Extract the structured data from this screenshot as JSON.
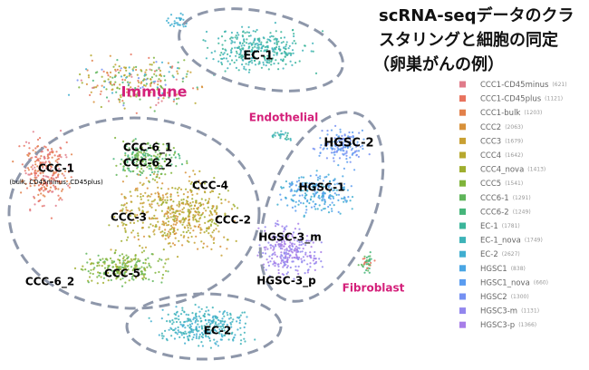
{
  "title_lines": [
    "scRNA-seqデータのクラ",
    "スタリングと細胞の同定",
    "（卵巣がんの例）"
  ],
  "legend": [
    {
      "name": "CCC1-CD45minus",
      "count": "(621)",
      "color": "#e07b8a"
    },
    {
      "name": "CCC1-CD45plus",
      "count": "(1121)",
      "color": "#e8735e"
    },
    {
      "name": "CCC1-bulk",
      "count": "(1203)",
      "color": "#e2804a"
    },
    {
      "name": "CCC2",
      "count": "(2063)",
      "color": "#d8913a"
    },
    {
      "name": "CCC3",
      "count": "(1679)",
      "color": "#c9a032"
    },
    {
      "name": "CCC4",
      "count": "(1642)",
      "color": "#b7a82e"
    },
    {
      "name": "CCC4_nova",
      "count": "(1413)",
      "color": "#9fae2e"
    },
    {
      "name": "CCC5",
      "count": "(1541)",
      "color": "#7fb43a"
    },
    {
      "name": "CCC6-1",
      "count": "(1291)",
      "color": "#5fb55a"
    },
    {
      "name": "CCC6-2",
      "count": "(1249)",
      "color": "#45b57a"
    },
    {
      "name": "EC-1",
      "count": "(1781)",
      "color": "#3bb59a"
    },
    {
      "name": "EC-1_nova",
      "count": "(1749)",
      "color": "#3db3b8"
    },
    {
      "name": "EC-2",
      "count": "(2627)",
      "color": "#40aed0"
    },
    {
      "name": "HGSC1",
      "count": "(838)",
      "color": "#4aa6e4"
    },
    {
      "name": "HGSC1_nova",
      "count": "(660)",
      "color": "#5a9cf0"
    },
    {
      "name": "HGSC2",
      "count": "(1300)",
      "color": "#7590f2"
    },
    {
      "name": "HGSC3-m",
      "count": "(1131)",
      "color": "#9286ee"
    },
    {
      "name": "HGSC3-p",
      "count": "(1366)",
      "color": "#a77ee8"
    }
  ],
  "labels": [
    {
      "text": "EC-1",
      "color": "#000000"
    },
    {
      "text": "Immune",
      "color": "#d4207a"
    },
    {
      "text": "Endothelial",
      "color": "#d4207a"
    },
    {
      "text": "HGSC-2",
      "color": "#000000"
    },
    {
      "text": "CCC-6_1",
      "color": "#000000"
    },
    {
      "text": "CCC-6_2",
      "color": "#000000"
    },
    {
      "text": "CCC-1",
      "color": "#000000"
    },
    {
      "text": "(bulk, CD45minus, CD45plus)",
      "color": "#000000"
    },
    {
      "text": "CCC-4",
      "color": "#000000"
    },
    {
      "text": "HGSC-1",
      "color": "#000000"
    },
    {
      "text": "CCC-3",
      "color": "#000000"
    },
    {
      "text": "CCC-2",
      "color": "#000000"
    },
    {
      "text": "HGSC-3_m",
      "color": "#000000"
    },
    {
      "text": "CCC-5",
      "color": "#000000"
    },
    {
      "text": "HGSC-3_p",
      "color": "#000000"
    },
    {
      "text": "Fibroblast",
      "color": "#d4207a"
    },
    {
      "text": "CCC-6_2",
      "color": "#000000"
    },
    {
      "text": "EC-2",
      "color": "#000000"
    }
  ]
}
